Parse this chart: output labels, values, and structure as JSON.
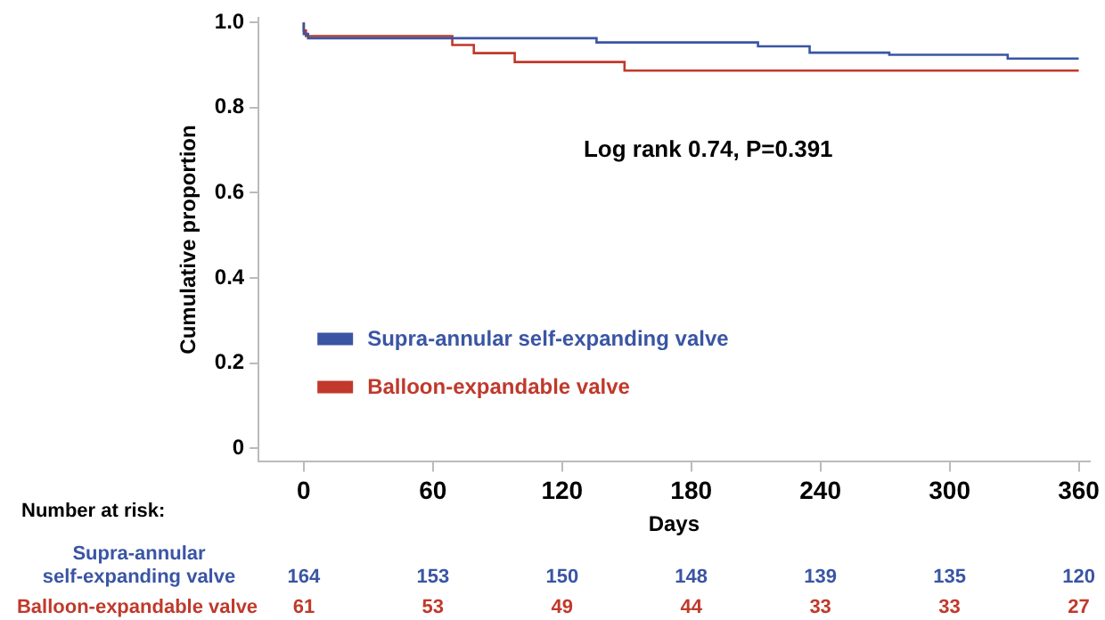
{
  "chart_data": {
    "type": "step",
    "ylabel": "Cumulative proportion",
    "xlabel": "Days",
    "xlim": [
      -21,
      365
    ],
    "xticks": [
      0,
      60,
      120,
      180,
      240,
      300,
      360
    ],
    "ylim": [
      -0.03,
      1.01
    ],
    "yticks": [
      0,
      0.2,
      0.4,
      0.6,
      0.8,
      {
        "value": 1,
        "label": "1.0"
      }
    ],
    "grid": false,
    "legend": "bottom left",
    "marker": "none",
    "line_style": "solid",
    "series": [
      {
        "name": "Supra-annular self-expanding valve",
        "color": "#3a55a4",
        "x": [
          0,
          2,
          136,
          211,
          235,
          272,
          327,
          349,
          360
        ],
        "values": [
          1.0,
          0.973,
          0.963,
          0.953,
          0.944,
          0.929,
          0.924,
          0.915,
          0.915
        ]
      },
      {
        "name": "Balloon-expandable valve",
        "color": "#c0392b",
        "x": [
          0,
          1,
          69,
          79,
          98,
          149,
          182,
          360
        ],
        "values": [
          1.0,
          0.981,
          0.968,
          0.947,
          0.928,
          0.907,
          0.887,
          0.887
        ]
      }
    ],
    "annotations": [
      "Log rank 0.74, P=0.391",
      "Number at risk:",
      "Supra-annular self-expanding valve",
      "164",
      "153",
      "150",
      "148",
      "139",
      "135",
      "120",
      "Balloon-expandable valve",
      "61",
      "53",
      "49",
      "44",
      "33",
      "33",
      "27"
    ]
  }
}
